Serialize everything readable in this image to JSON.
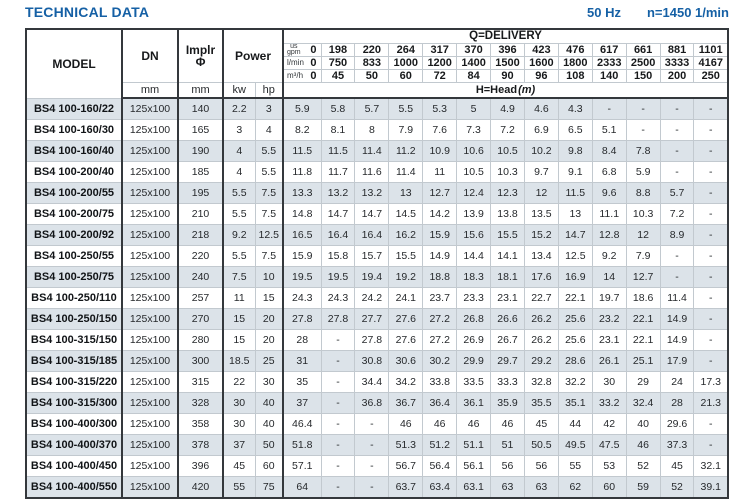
{
  "header": {
    "title": "TECHNICAL DATA",
    "frequency": "50 Hz",
    "speed": "n=1450 1/min"
  },
  "table": {
    "column_headers": {
      "model": "MODEL",
      "dn": "DN",
      "implr_line1": "Implr",
      "implr_line2": "Φ",
      "mm": "mm",
      "power": "Power",
      "kw": "kw",
      "hp": "hp",
      "delivery_title": "Q=DELIVERY",
      "head_title": "H=Head",
      "head_unit": "(m)",
      "unit_gpm_line1": "us",
      "unit_gpm_line2": "gpm",
      "unit_lmin": "l/min",
      "unit_m3h": "m³/h"
    },
    "delivery_rows": {
      "us_gpm": [
        "0",
        "198",
        "220",
        "264",
        "317",
        "370",
        "396",
        "423",
        "476",
        "617",
        "661",
        "881",
        "1101"
      ],
      "l_min": [
        "0",
        "750",
        "833",
        "1000",
        "1200",
        "1400",
        "1500",
        "1600",
        "1800",
        "2333",
        "2500",
        "3333",
        "4167"
      ],
      "m3_h": [
        "0",
        "45",
        "50",
        "60",
        "72",
        "84",
        "90",
        "96",
        "108",
        "140",
        "150",
        "200",
        "250"
      ]
    },
    "rows": [
      {
        "model": "BS4 100-160/22",
        "dn": "125x100",
        "implr": "140",
        "kw": "2.2",
        "hp": "3",
        "head": [
          "5.9",
          "5.8",
          "5.7",
          "5.5",
          "5.3",
          "5",
          "4.9",
          "4.6",
          "4.3",
          "-",
          "-",
          "-",
          "-"
        ]
      },
      {
        "model": "BS4 100-160/30",
        "dn": "125x100",
        "implr": "165",
        "kw": "3",
        "hp": "4",
        "head": [
          "8.2",
          "8.1",
          "8",
          "7.9",
          "7.6",
          "7.3",
          "7.2",
          "6.9",
          "6.5",
          "5.1",
          "-",
          "-",
          "-"
        ]
      },
      {
        "model": "BS4 100-160/40",
        "dn": "125x100",
        "implr": "190",
        "kw": "4",
        "hp": "5.5",
        "head": [
          "11.5",
          "11.5",
          "11.4",
          "11.2",
          "10.9",
          "10.6",
          "10.5",
          "10.2",
          "9.8",
          "8.4",
          "7.8",
          "-",
          "-"
        ]
      },
      {
        "model": "BS4 100-200/40",
        "dn": "125x100",
        "implr": "185",
        "kw": "4",
        "hp": "5.5",
        "head": [
          "11.8",
          "11.7",
          "11.6",
          "11.4",
          "11",
          "10.5",
          "10.3",
          "9.7",
          "9.1",
          "6.8",
          "5.9",
          "-",
          "-"
        ]
      },
      {
        "model": "BS4 100-200/55",
        "dn": "125x100",
        "implr": "195",
        "kw": "5.5",
        "hp": "7.5",
        "head": [
          "13.3",
          "13.2",
          "13.2",
          "13",
          "12.7",
          "12.4",
          "12.3",
          "12",
          "11.5",
          "9.6",
          "8.8",
          "5.7",
          "-"
        ]
      },
      {
        "model": "BS4 100-200/75",
        "dn": "125x100",
        "implr": "210",
        "kw": "5.5",
        "hp": "7.5",
        "head": [
          "14.8",
          "14.7",
          "14.7",
          "14.5",
          "14.2",
          "13.9",
          "13.8",
          "13.5",
          "13",
          "11.1",
          "10.3",
          "7.2",
          "-"
        ]
      },
      {
        "model": "BS4 100-200/92",
        "dn": "125x100",
        "implr": "218",
        "kw": "9.2",
        "hp": "12.5",
        "head": [
          "16.5",
          "16.4",
          "16.4",
          "16.2",
          "15.9",
          "15.6",
          "15.5",
          "15.2",
          "14.7",
          "12.8",
          "12",
          "8.9",
          "-"
        ]
      },
      {
        "model": "BS4 100-250/55",
        "dn": "125x100",
        "implr": "220",
        "kw": "5.5",
        "hp": "7.5",
        "head": [
          "15.9",
          "15.8",
          "15.7",
          "15.5",
          "14.9",
          "14.4",
          "14.1",
          "13.4",
          "12.5",
          "9.2",
          "7.9",
          "-",
          "-"
        ]
      },
      {
        "model": "BS4 100-250/75",
        "dn": "125x100",
        "implr": "240",
        "kw": "7.5",
        "hp": "10",
        "head": [
          "19.5",
          "19.5",
          "19.4",
          "19.2",
          "18.8",
          "18.3",
          "18.1",
          "17.6",
          "16.9",
          "14",
          "12.7",
          "-",
          "-"
        ]
      },
      {
        "model": "BS4 100-250/110",
        "dn": "125x100",
        "implr": "257",
        "kw": "11",
        "hp": "15",
        "head": [
          "24.3",
          "24.3",
          "24.2",
          "24.1",
          "23.7",
          "23.3",
          "23.1",
          "22.7",
          "22.1",
          "19.7",
          "18.6",
          "11.4",
          "-"
        ]
      },
      {
        "model": "BS4 100-250/150",
        "dn": "125x100",
        "implr": "270",
        "kw": "15",
        "hp": "20",
        "head": [
          "27.8",
          "27.8",
          "27.7",
          "27.6",
          "27.2",
          "26.8",
          "26.6",
          "26.2",
          "25.6",
          "23.2",
          "22.1",
          "14.9",
          "-"
        ]
      },
      {
        "model": "BS4 100-315/150",
        "dn": "125x100",
        "implr": "280",
        "kw": "15",
        "hp": "20",
        "head": [
          "28",
          "-",
          "27.8",
          "27.6",
          "27.2",
          "26.9",
          "26.7",
          "26.2",
          "25.6",
          "23.1",
          "22.1",
          "14.9",
          "-"
        ]
      },
      {
        "model": "BS4 100-315/185",
        "dn": "125x100",
        "implr": "300",
        "kw": "18.5",
        "hp": "25",
        "head": [
          "31",
          "-",
          "30.8",
          "30.6",
          "30.2",
          "29.9",
          "29.7",
          "29.2",
          "28.6",
          "26.1",
          "25.1",
          "17.9",
          "-"
        ]
      },
      {
        "model": "BS4 100-315/220",
        "dn": "125x100",
        "implr": "315",
        "kw": "22",
        "hp": "30",
        "head": [
          "35",
          "-",
          "34.4",
          "34.2",
          "33.8",
          "33.5",
          "33.3",
          "32.8",
          "32.2",
          "30",
          "29",
          "24",
          "17.3"
        ]
      },
      {
        "model": "BS4 100-315/300",
        "dn": "125x100",
        "implr": "328",
        "kw": "30",
        "hp": "40",
        "head": [
          "37",
          "-",
          "36.8",
          "36.7",
          "36.4",
          "36.1",
          "35.9",
          "35.5",
          "35.1",
          "33.2",
          "32.4",
          "28",
          "21.3"
        ]
      },
      {
        "model": "BS4 100-400/300",
        "dn": "125x100",
        "implr": "358",
        "kw": "30",
        "hp": "40",
        "head": [
          "46.4",
          "-",
          "-",
          "46",
          "46",
          "46",
          "46",
          "45",
          "44",
          "42",
          "40",
          "29.6",
          "-"
        ]
      },
      {
        "model": "BS4 100-400/370",
        "dn": "125x100",
        "implr": "378",
        "kw": "37",
        "hp": "50",
        "head": [
          "51.8",
          "-",
          "-",
          "51.3",
          "51.2",
          "51.1",
          "51",
          "50.5",
          "49.5",
          "47.5",
          "46",
          "37.3",
          "-"
        ]
      },
      {
        "model": "BS4 100-400/450",
        "dn": "125x100",
        "implr": "396",
        "kw": "45",
        "hp": "60",
        "head": [
          "57.1",
          "-",
          "-",
          "56.7",
          "56.4",
          "56.1",
          "56",
          "56",
          "55",
          "53",
          "52",
          "45",
          "32.1"
        ]
      },
      {
        "model": "BS4 100-400/550",
        "dn": "125x100",
        "implr": "420",
        "kw": "55",
        "hp": "75",
        "head": [
          "64",
          "-",
          "-",
          "63.7",
          "63.4",
          "63.1",
          "63",
          "63",
          "62",
          "60",
          "59",
          "52",
          "39.1"
        ]
      }
    ]
  }
}
